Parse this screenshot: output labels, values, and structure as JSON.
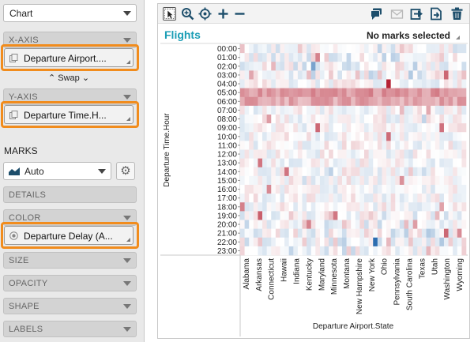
{
  "shelf": {
    "chart_type_label": "Chart",
    "x_axis_label": "X-AXIS",
    "x_axis_field": "Departure Airport....",
    "swap_label": "Swap",
    "y_axis_label": "Y-AXIS",
    "y_axis_field": "Departure Time.H...",
    "marks_title": "MARKS",
    "mark_type": "Auto",
    "details_label": "DETAILS",
    "color_label": "COLOR",
    "color_field": "Departure Delay (A...",
    "size_label": "SIZE",
    "opacity_label": "OPACITY",
    "shape_label": "SHAPE",
    "labels_label": "LABELS"
  },
  "toolbar": {
    "icons": [
      "select-icon",
      "zoom-icon",
      "pan-icon",
      "add-icon",
      "remove-icon",
      "comment-icon",
      "mail-icon",
      "share-icon",
      "export-icon",
      "trash-icon"
    ]
  },
  "viz": {
    "title": "Flights",
    "selection_status": "No marks selected"
  },
  "colors": {
    "accent": "#1a9db5",
    "highlight": "#f18c1d",
    "positive": "#b2182b",
    "negative": "#2166ac"
  },
  "chart_data": {
    "type": "heatmap",
    "xlabel": "Departure Airport.State",
    "ylabel": "Departure Time.Hour",
    "y_categories": [
      "00:00",
      "01:00",
      "02:00",
      "03:00",
      "04:00",
      "05:00",
      "06:00",
      "07:00",
      "08:00",
      "09:00",
      "10:00",
      "11:00",
      "12:00",
      "13:00",
      "14:00",
      "15:00",
      "16:00",
      "17:00",
      "18:00",
      "19:00",
      "20:00",
      "21:00",
      "22:00",
      "23:00"
    ],
    "x_tick_labels": [
      "Alabama",
      "Arkansas",
      "Connecticut",
      "Hawaii",
      "Indiana",
      "Kentucky",
      "Maryland",
      "Minnesota",
      "Montana",
      "New Hampshire",
      "New York",
      "Ohio",
      "Pennsylvania",
      "South Carolina",
      "Texas",
      "Utah",
      "Washington",
      "Wyoming"
    ],
    "x_column_count": 51,
    "color_field": "Departure Delay (A...",
    "color_scale": "diverging red-blue (red = delay, blue = early)",
    "hot_cells": [
      {
        "row": "05:00",
        "intensity": 0.45
      },
      {
        "row": "06:00",
        "intensity": 0.38
      },
      {
        "row": "04:00",
        "col": "Ohio",
        "intensity": 0.95
      },
      {
        "row": "22:00",
        "col": "New York",
        "intensity": -0.95
      },
      {
        "row": "02:00",
        "col": "Kentucky",
        "intensity": -0.6
      }
    ]
  }
}
